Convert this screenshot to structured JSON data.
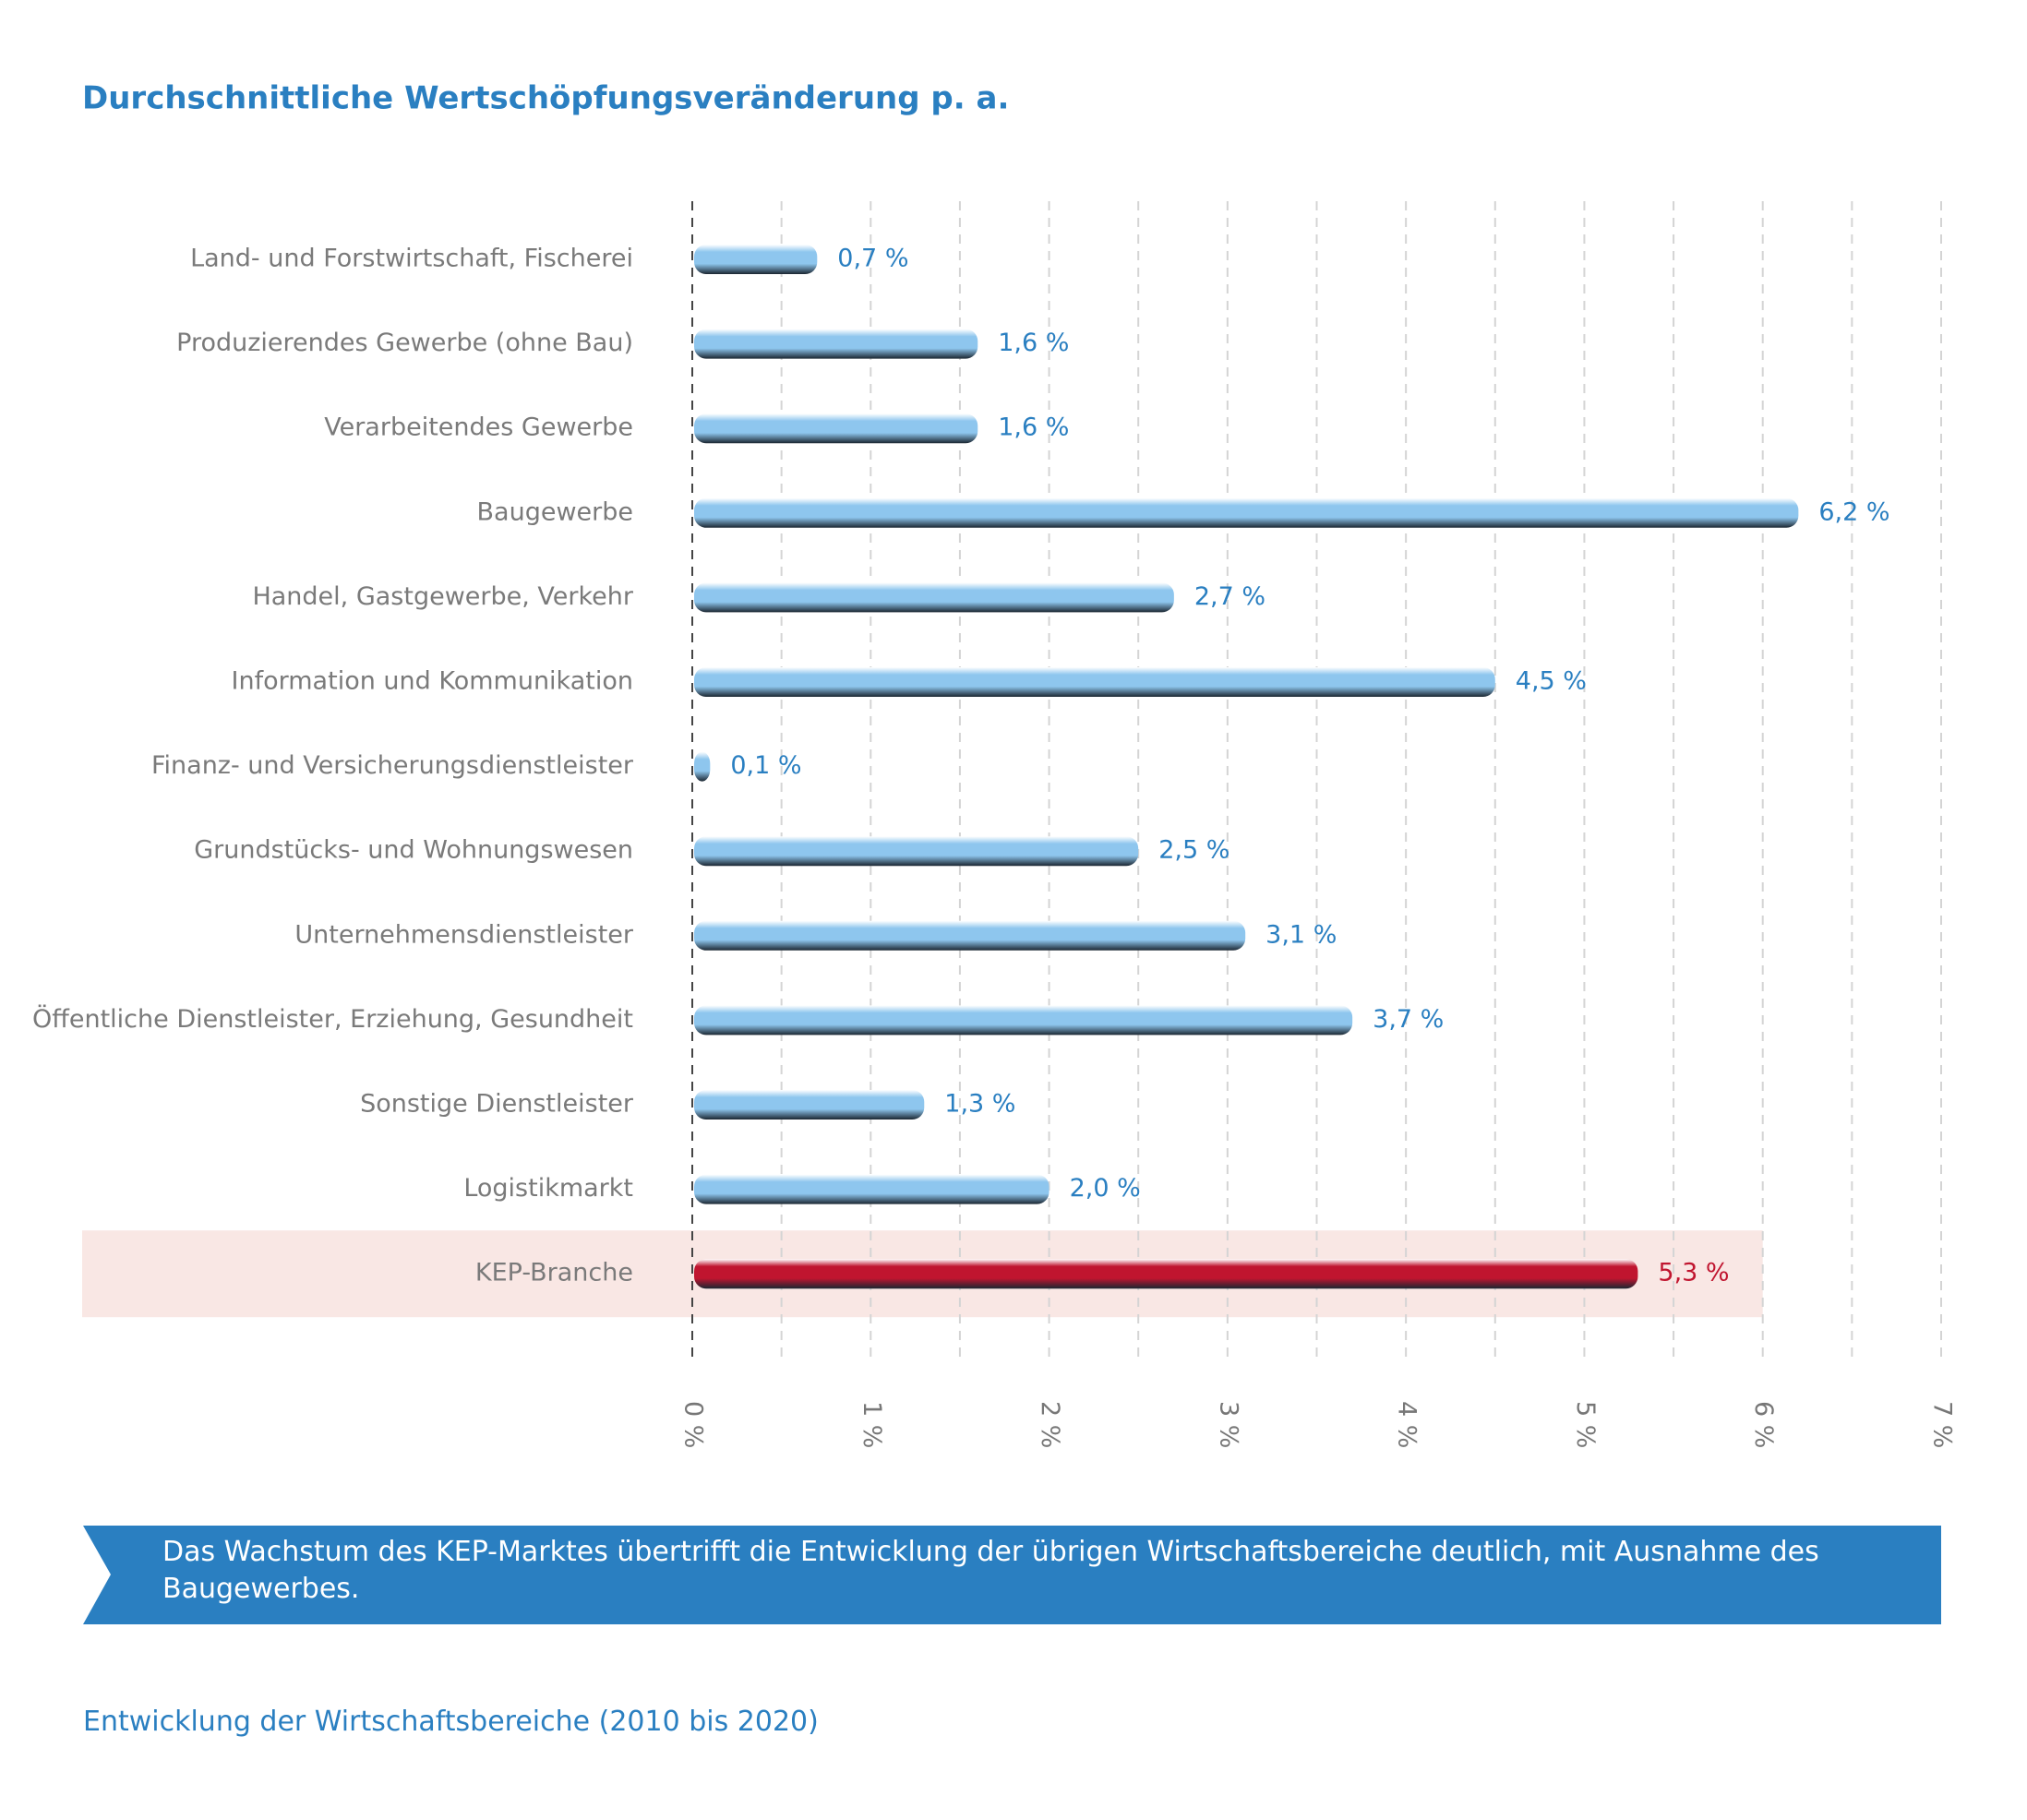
{
  "chart_data": {
    "type": "hbar",
    "title": "Durchschnittliche Wertschöpfungsveränderung p. a.",
    "categories": [
      "Land- und Forstwirtschaft, Fischerei",
      "Produzierendes Gewerbe (ohne Bau)",
      "Verarbeitendes Gewerbe",
      "Baugewerbe",
      "Handel, Gastgewerbe, Verkehr",
      "Information und Kommunikation",
      "Finanz- und Versicherungsdienstleister",
      "Grundstücks- und Wohnungswesen",
      "Unternehmensdienstleister",
      "Öffentliche Dienstleister, Erziehung, Gesundheit",
      "Sonstige Dienstleister",
      "Logistikmarkt",
      "KEP-Branche"
    ],
    "values": [
      0.7,
      1.6,
      1.6,
      6.2,
      2.7,
      4.5,
      0.1,
      2.5,
      3.1,
      3.7,
      1.3,
      2.0,
      5.3
    ],
    "value_labels": [
      "0,7 %",
      "1,6 %",
      "1,6 %",
      "6,2 %",
      "2,7 %",
      "4,5 %",
      "0,1 %",
      "2,5 %",
      "3,1 %",
      "3,7 %",
      "1,3 %",
      "2,0 %",
      "5,3 %"
    ],
    "colors": [
      "#8ec6ee",
      "#8ec6ee",
      "#8ec6ee",
      "#8ec6ee",
      "#8ec6ee",
      "#8ec6ee",
      "#8ec6ee",
      "#8ec6ee",
      "#8ec6ee",
      "#8ec6ee",
      "#8ec6ee",
      "#8ec6ee",
      "#c0152f"
    ],
    "value_label_colors": [
      "#2a7fc1",
      "#2a7fc1",
      "#2a7fc1",
      "#2a7fc1",
      "#2a7fc1",
      "#2a7fc1",
      "#2a7fc1",
      "#2a7fc1",
      "#2a7fc1",
      "#2a7fc1",
      "#2a7fc1",
      "#2a7fc1",
      "#c0152f"
    ],
    "highlight_index": 12,
    "highlight_color": "#f9e7e4",
    "xlim": [
      0,
      7
    ],
    "xticks": [
      {
        "value": 0,
        "label": "0 %"
      },
      {
        "value": 1,
        "label": "1 %"
      },
      {
        "value": 2,
        "label": "2 %"
      },
      {
        "value": 3,
        "label": "3 %"
      },
      {
        "value": 4,
        "label": "4 %"
      },
      {
        "value": 5,
        "label": "5 %"
      },
      {
        "value": 6,
        "label": "6 %"
      },
      {
        "value": 7,
        "label": "7 %"
      }
    ],
    "xminorticks": [
      0.5,
      1.5,
      2.5,
      3.5,
      4.5,
      5.5,
      6.5
    ],
    "grid": true
  },
  "callout": "Das Wachstum des KEP-Marktes übertrifft die Entwicklung der übrigen Wirtschaftsbereiche deutlich, mit Ausnahme des Baugewerbes.",
  "source": "Entwicklung der Wirtschaftsbereiche (2010 bis 2020)"
}
